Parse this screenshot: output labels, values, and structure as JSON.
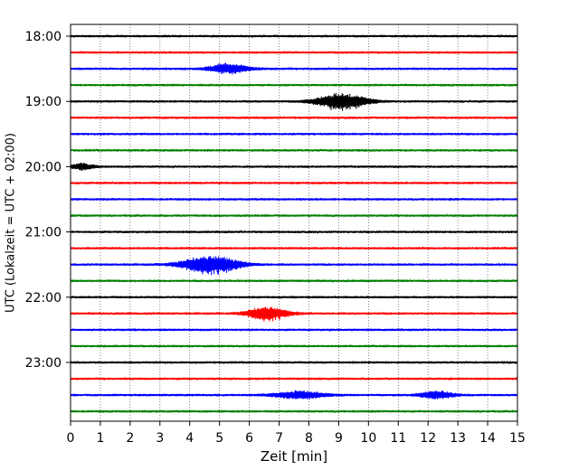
{
  "chart_data": {
    "type": "line",
    "title": "",
    "xlabel": "Zeit  [min]",
    "ylabel": "UTC (Lokalzeit = UTC + 02:00)",
    "xlim": [
      0,
      15
    ],
    "x_ticks": [
      "0",
      "1",
      "2",
      "3",
      "4",
      "5",
      "6",
      "7",
      "8",
      "9",
      "10",
      "11",
      "12",
      "13",
      "14",
      "15"
    ],
    "y_ticks": [
      "18:00",
      "19:00",
      "20:00",
      "21:00",
      "22:00",
      "23:00"
    ],
    "grid_x": "dotted vertical at every minute",
    "trace_colors": [
      "#000000",
      "#ff0000",
      "#0000ff",
      "#008000"
    ],
    "traces": [
      {
        "time": "18:00",
        "color": "#000000",
        "events": []
      },
      {
        "time": "18:15",
        "color": "#ff0000",
        "events": []
      },
      {
        "time": "18:30",
        "color": "#0000ff",
        "events": [
          {
            "center_min": 5.3,
            "width_min": 1.4,
            "amplitude": 0.45
          }
        ]
      },
      {
        "time": "18:45",
        "color": "#008000",
        "events": []
      },
      {
        "time": "19:00",
        "color": "#000000",
        "events": [
          {
            "center_min": 9.1,
            "width_min": 1.8,
            "amplitude": 0.75
          }
        ]
      },
      {
        "time": "19:15",
        "color": "#ff0000",
        "events": []
      },
      {
        "time": "19:30",
        "color": "#0000ff",
        "events": []
      },
      {
        "time": "19:45",
        "color": "#008000",
        "events": []
      },
      {
        "time": "20:00",
        "color": "#000000",
        "events": [
          {
            "center_min": 0.4,
            "width_min": 0.8,
            "amplitude": 0.3
          }
        ]
      },
      {
        "time": "20:15",
        "color": "#ff0000",
        "events": []
      },
      {
        "time": "20:30",
        "color": "#0000ff",
        "events": []
      },
      {
        "time": "20:45",
        "color": "#008000",
        "events": []
      },
      {
        "time": "21:00",
        "color": "#000000",
        "events": []
      },
      {
        "time": "21:15",
        "color": "#ff0000",
        "events": []
      },
      {
        "time": "21:30",
        "color": "#0000ff",
        "events": [
          {
            "center_min": 4.7,
            "width_min": 2.0,
            "amplitude": 0.85
          }
        ]
      },
      {
        "time": "21:45",
        "color": "#008000",
        "events": []
      },
      {
        "time": "22:00",
        "color": "#000000",
        "events": []
      },
      {
        "time": "22:15",
        "color": "#ff0000",
        "events": [
          {
            "center_min": 6.6,
            "width_min": 1.4,
            "amplitude": 0.65
          }
        ]
      },
      {
        "time": "22:30",
        "color": "#0000ff",
        "events": []
      },
      {
        "time": "22:45",
        "color": "#008000",
        "events": []
      },
      {
        "time": "23:00",
        "color": "#000000",
        "events": []
      },
      {
        "time": "23:15",
        "color": "#ff0000",
        "events": []
      },
      {
        "time": "23:30",
        "color": "#0000ff",
        "events": [
          {
            "center_min": 7.7,
            "width_min": 1.8,
            "amplitude": 0.35
          },
          {
            "center_min": 12.3,
            "width_min": 1.2,
            "amplitude": 0.35
          }
        ]
      },
      {
        "time": "23:45",
        "color": "#008000",
        "events": []
      }
    ]
  }
}
